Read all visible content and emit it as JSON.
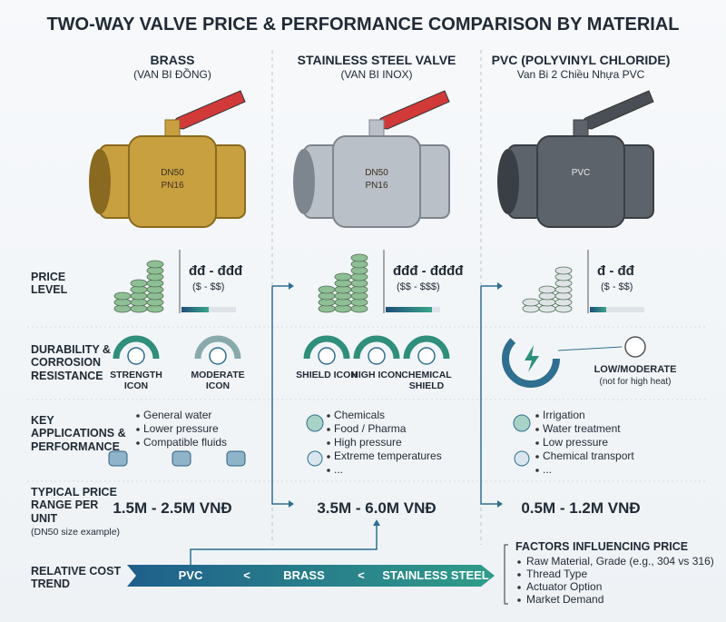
{
  "title": "TWO-WAY VALVE PRICE & PERFORMANCE COMPARISON BY MATERIAL",
  "rows": [
    "PRICE LEVEL",
    "DURABILITY & CORROSION RESISTANCE",
    "KEY APPLICATIONS & PERFORMANCE",
    "TYPICAL PRICE RANGE PER UNIT",
    "RELATIVE COST TREND"
  ],
  "price_note": "(DN50 size example)",
  "materials": [
    {
      "name": "BRASS",
      "subtitle": "(VAN BI ĐỒNG)",
      "valve_marks": [
        "DN50",
        "PN16"
      ],
      "price_symbol": "đđ - đđđ",
      "price_usd": "($ - $$)",
      "durability": [
        "STRENGTH ICON",
        "MODERATE ICON"
      ],
      "applications": [
        "General water",
        "Lower pressure",
        "Compatible fluids"
      ],
      "price_range": "1.5M - 2.5M VNĐ"
    },
    {
      "name": "STAINLESS STEEL VALVE",
      "subtitle": "(VAN BI INOX)",
      "valve_marks": [
        "DN50",
        "PN16"
      ],
      "price_symbol": "đđđ - đđđđ",
      "price_usd": "($$ - $$$)",
      "durability": [
        "SHIELD ICON",
        "HIGH ICON",
        "CHEMICAL SHIELD"
      ],
      "applications": [
        "Chemicals",
        "Food / Pharma",
        "High pressure",
        "Extreme temperatures",
        "..."
      ],
      "price_range": "3.5M - 6.0M VNĐ"
    },
    {
      "name": "PVC (POLYVINYL CHLORIDE)",
      "subtitle": "Van Bi 2 Chiều Nhựa PVC",
      "valve_marks": [
        "PVC"
      ],
      "price_symbol": "đ - đđ",
      "price_usd": "($ - $$)",
      "durability": [
        "LOW/MODERATE",
        "(not for high heat)"
      ],
      "applications": [
        "Irrigation",
        "Water treatment",
        "Low pressure",
        "Chemical transport",
        "..."
      ],
      "price_range": "0.5M - 1.2M VNĐ"
    }
  ],
  "cost_trend": [
    "PVC",
    "<",
    "BRASS",
    "<",
    "STAINLESS STEEL"
  ],
  "factors": {
    "title": "FACTORS INFLUENCING PRICE",
    "items": [
      "Raw Material, Grade (e.g., 304 vs 316)",
      "Thread Type",
      "Actuator Option",
      "Market Demand"
    ]
  }
}
